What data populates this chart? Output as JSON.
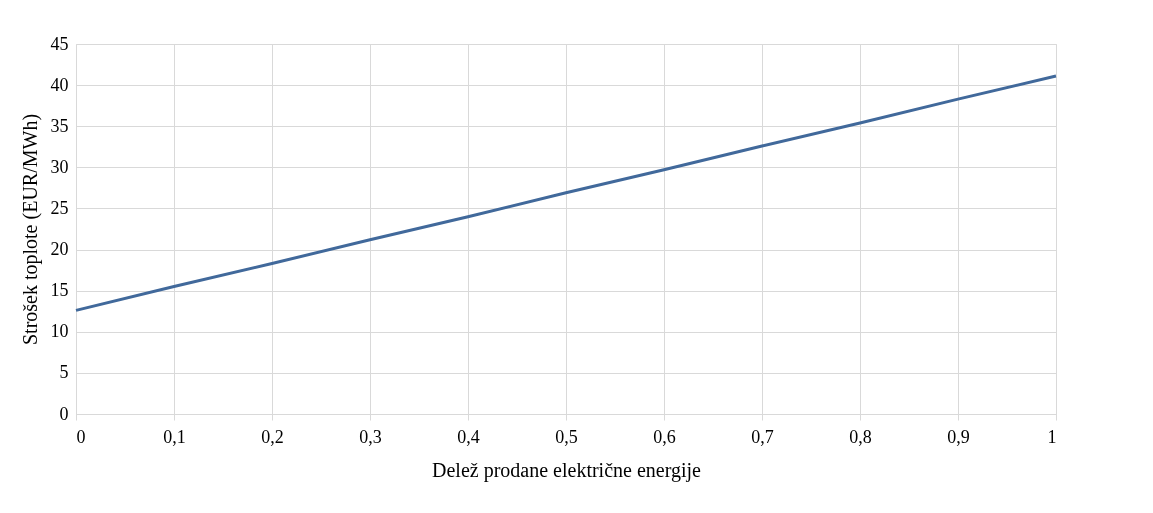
{
  "chart_data": {
    "type": "line",
    "xlabel": "Delež prodane električne energije",
    "ylabel": "Strošek toplote (EUR/MWh)",
    "x": [
      0,
      0.1,
      0.2,
      0.3,
      0.4,
      0.5,
      0.6,
      0.7,
      0.8,
      0.9,
      1
    ],
    "series": [
      {
        "color": "#41699b",
        "values": [
          12.6,
          15.5,
          18.3,
          21.2,
          24.0,
          26.9,
          29.7,
          32.6,
          35.4,
          38.3,
          41.1
        ]
      }
    ],
    "xlim": [
      0,
      1
    ],
    "xticks": [
      0,
      {
        "value": 0.1,
        "label": "0,1"
      },
      {
        "value": 0.2,
        "label": "0,2"
      },
      {
        "value": 0.3,
        "label": "0,3"
      },
      {
        "value": 0.4,
        "label": "0,4"
      },
      {
        "value": 0.5,
        "label": "0,5"
      },
      {
        "value": 0.6,
        "label": "0,6"
      },
      {
        "value": 0.7,
        "label": "0,7"
      },
      {
        "value": 0.8,
        "label": "0,8"
      },
      {
        "value": 0.9,
        "label": "0,9"
      },
      1
    ],
    "ylim": [
      0,
      45
    ],
    "yticks": [
      0,
      5,
      10,
      15,
      20,
      25,
      30,
      35,
      40,
      45
    ],
    "grid": true,
    "marker": "none",
    "line_style": "solid"
  }
}
